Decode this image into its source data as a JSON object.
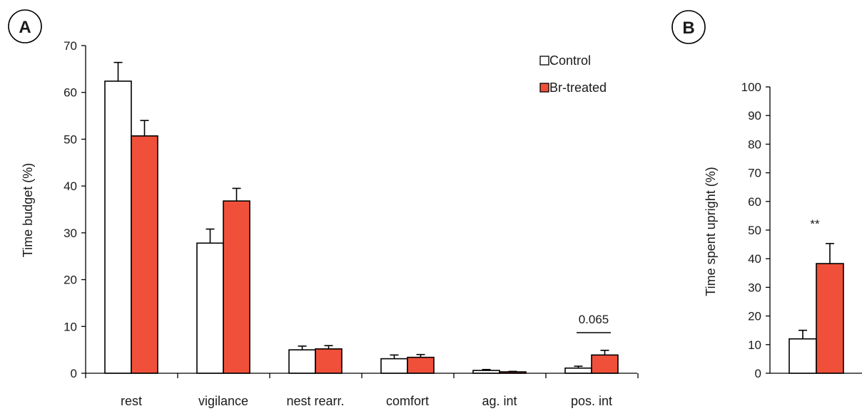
{
  "colors": {
    "control": "#ffffff",
    "treated": "#f0503a",
    "stroke": "#000000"
  },
  "chart_data": [
    {
      "panel": "A",
      "type": "bar",
      "ylabel": "Time budget (%)",
      "ylim": [
        0,
        70
      ],
      "yticks": [
        "0",
        "10",
        "20",
        "30",
        "40",
        "50",
        "60",
        "70"
      ],
      "categories": [
        "rest",
        "vigilance",
        "nest rearr.",
        "comfort",
        "ag. int",
        "pos. int"
      ],
      "series": [
        {
          "name": "Control",
          "values": [
            62.4,
            27.8,
            5.0,
            3.1,
            0.6,
            1.1
          ],
          "errors": [
            4.0,
            3.0,
            0.8,
            0.8,
            0.2,
            0.4
          ]
        },
        {
          "name": "Br-treated",
          "values": [
            50.7,
            36.8,
            5.2,
            3.4,
            0.3,
            3.9
          ],
          "errors": [
            3.3,
            2.7,
            0.7,
            0.6,
            0.1,
            1.0
          ]
        }
      ],
      "legend": {
        "position": "top-right"
      },
      "annotations": [
        {
          "category": "pos. int",
          "text": "0.065"
        }
      ]
    },
    {
      "panel": "B",
      "type": "bar",
      "ylabel": "Time spent upright (%)",
      "ylim": [
        0,
        100
      ],
      "yticks": [
        "0",
        "10",
        "20",
        "30",
        "40",
        "50",
        "60",
        "70",
        "80",
        "90",
        "100"
      ],
      "categories": [
        ""
      ],
      "series": [
        {
          "name": "Control",
          "values": [
            12.0
          ],
          "errors": [
            3.0
          ]
        },
        {
          "name": "Br-treated",
          "values": [
            38.3
          ],
          "errors": [
            7.0
          ]
        }
      ],
      "annotations": [
        {
          "text": "**"
        }
      ]
    }
  ]
}
